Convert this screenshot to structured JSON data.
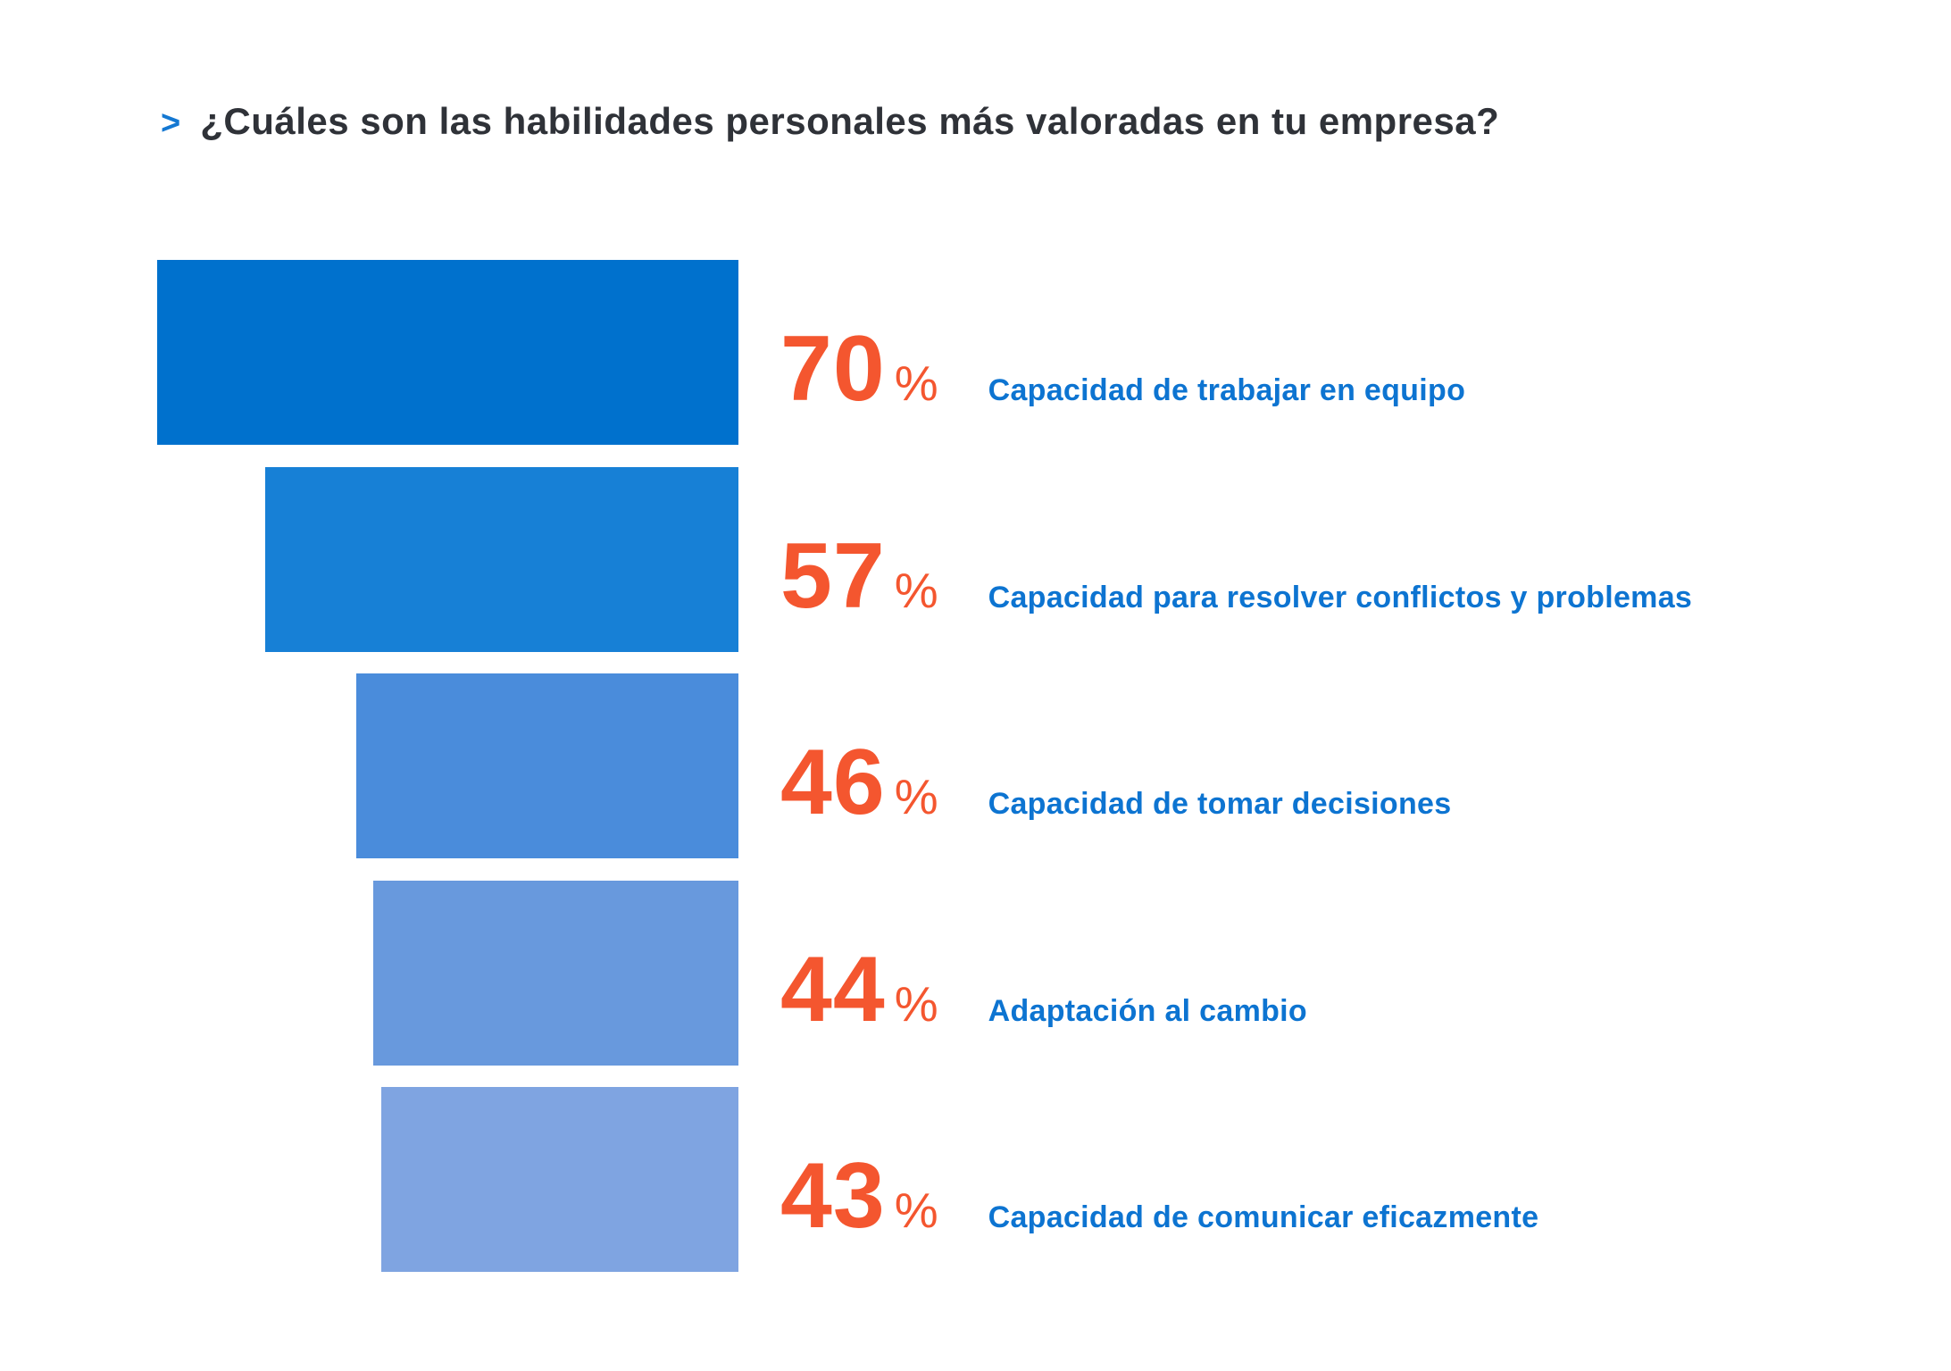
{
  "title": {
    "marker": ">",
    "text": "¿Cuáles son las habilidades personales más valoradas en tu empresa?"
  },
  "chart_data": {
    "type": "bar",
    "orientation": "horizontal",
    "layout_hint": "funnel-style, bars right-aligned, widths proportional to value, no axes, no gridlines, no legend",
    "title": "¿Cuáles son las habilidades personales más valoradas en tu empresa?",
    "categories": [
      "Capacidad de trabajar en equipo",
      "Capacidad para resolver conflictos y problemas",
      "Capacidad de tomar decisiones",
      "Adaptación al cambio",
      "Capacidad de comunicar eficazmente"
    ],
    "values": [
      70,
      57,
      46,
      44,
      43
    ],
    "value_labels": [
      "70",
      "57",
      "46",
      "44",
      "43"
    ],
    "unit": "%",
    "xlim": [
      0,
      70
    ],
    "grid": false,
    "legend": false,
    "bar_colors": [
      "#0071CD",
      "#1780D6",
      "#4A8CDB",
      "#6899DD",
      "#7FA4E1"
    ]
  },
  "colors": {
    "background": "#FFFFFF",
    "title_text": "#2F3238",
    "title_marker": "#1478D2",
    "percent_value": "#F4562F",
    "category_label": "#0D74D1"
  }
}
